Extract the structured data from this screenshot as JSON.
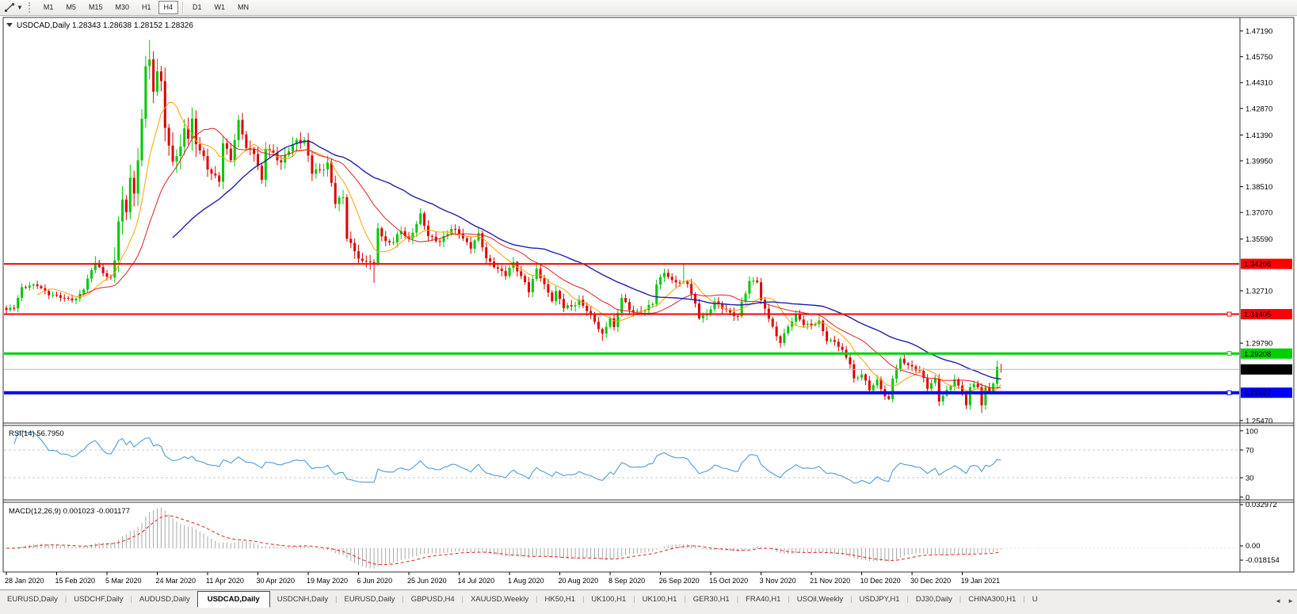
{
  "toolbar": {
    "timeframes": [
      "M1",
      "M5",
      "M15",
      "M30",
      "H1",
      "H4",
      "D1",
      "W1",
      "MN"
    ],
    "active_timeframe": "H4"
  },
  "chart": {
    "title_text": "USDCAD,Daily  1.28343 1.28638 1.28152 1.28326",
    "symbol_period": "USDCAD,Daily"
  },
  "colors": {
    "bull": "#00c800",
    "bear": "#e00000",
    "ma_fast": "#ffa000",
    "ma_mid": "#e01f1f",
    "ma_slow": "#1f1fae",
    "rsi_line": "#4f9bd8",
    "rsi_dash": "#c9c9c9",
    "macd_hist": "#a8a8a8",
    "macd_signal": "#e01f1f",
    "level_red": "#ff0000",
    "level_green": "#00cf00",
    "level_blue": "#0000ff",
    "current_price_line": "#b8b8b8",
    "badge_black": "#000000",
    "title_text": "#2929c8"
  },
  "chart_data": {
    "type": "candlestick+indicators",
    "symbol": "USDCAD",
    "period": "Daily",
    "ohlc_display": {
      "open": 1.28343,
      "high": 1.28638,
      "low": 1.28152,
      "close": 1.28326
    },
    "bars_total": 258,
    "x_labels": [
      "28 Jan 2020",
      "15 Feb 2020",
      "5 Mar 2020",
      "24 Mar 2020",
      "11 Apr 2020",
      "30 Apr 2020",
      "19 May 2020",
      "6 Jun 2020",
      "25 Jun 2020",
      "14 Jul 2020",
      "1 Aug 2020",
      "20 Aug 2020",
      "8 Sep 2020",
      "26 Sep 2020",
      "15 Oct 2020",
      "3 Nov 2020",
      "21 Nov 2020",
      "10 Dec 2020",
      "30 Dec 2020",
      "19 Jan 2021"
    ],
    "bars_per_label": 13,
    "y_axis_labels": [
      "1.47190",
      "1.45750",
      "1.44310",
      "1.42870",
      "1.41390",
      "1.39950",
      "1.38510",
      "1.37070",
      "1.35590",
      "1.32710",
      "1.29790",
      "1.25470"
    ],
    "levels": [
      {
        "price": 1.34206,
        "label": "1.34206",
        "color_key": "level_red",
        "width": 2,
        "handle": false,
        "label_fg": "#ffffff"
      },
      {
        "price": 1.31405,
        "label": "1.31405",
        "color_key": "level_red",
        "width": 2,
        "handle": true,
        "label_fg": "#ffffff"
      },
      {
        "price": 1.29208,
        "label": "1.29208",
        "color_key": "level_green",
        "width": 3,
        "handle": true,
        "label_fg": "#000000"
      },
      {
        "price": 1.27027,
        "label": "1.27027",
        "color_key": "level_blue",
        "width": 4,
        "handle": true,
        "label_fg": "#ffffff"
      }
    ],
    "current_price": {
      "price": 1.28326,
      "label": "1.28326"
    },
    "close_path_anchors": [
      [
        0,
        1.316
      ],
      [
        2,
        1.318
      ],
      [
        4,
        1.329
      ],
      [
        8,
        1.33
      ],
      [
        11,
        1.3255
      ],
      [
        15,
        1.3225
      ],
      [
        18,
        1.3228
      ],
      [
        20,
        1.328
      ],
      [
        23,
        1.3432
      ],
      [
        25,
        1.3372
      ],
      [
        27,
        1.334
      ],
      [
        28,
        1.3425
      ],
      [
        29,
        1.366
      ],
      [
        30,
        1.376
      ],
      [
        31,
        1.372
      ],
      [
        32,
        1.393
      ],
      [
        33,
        1.3805
      ],
      [
        34,
        1.3998
      ],
      [
        35,
        1.423
      ],
      [
        36,
        1.449
      ],
      [
        37,
        1.456
      ],
      [
        38,
        1.44
      ],
      [
        39,
        1.449
      ],
      [
        40,
        1.4458
      ],
      [
        41,
        1.419
      ],
      [
        42,
        1.405
      ],
      [
        43,
        1.3985
      ],
      [
        45,
        1.406
      ],
      [
        46,
        1.42
      ],
      [
        47,
        1.414
      ],
      [
        48,
        1.4215
      ],
      [
        49,
        1.409
      ],
      [
        51,
        1.4005
      ],
      [
        52,
        1.3955
      ],
      [
        55,
        1.389
      ],
      [
        56,
        1.409
      ],
      [
        58,
        1.4
      ],
      [
        60,
        1.422
      ],
      [
        61,
        1.416
      ],
      [
        62,
        1.407
      ],
      [
        64,
        1.4035
      ],
      [
        66,
        1.388
      ],
      [
        67,
        1.4075
      ],
      [
        69,
        1.404
      ],
      [
        71,
        1.3975
      ],
      [
        73,
        1.4055
      ],
      [
        75,
        1.4115
      ],
      [
        77,
        1.4105
      ],
      [
        79,
        1.3925
      ],
      [
        81,
        1.3945
      ],
      [
        83,
        1.3985
      ],
      [
        85,
        1.376
      ],
      [
        87,
        1.3785
      ],
      [
        88,
        1.357
      ],
      [
        90,
        1.35
      ],
      [
        92,
        1.3425
      ],
      [
        94,
        1.343
      ],
      [
        95,
        1.3415
      ],
      [
        96,
        1.3625
      ],
      [
        98,
        1.3545
      ],
      [
        100,
        1.354
      ],
      [
        102,
        1.3605
      ],
      [
        104,
        1.356
      ],
      [
        107,
        1.369
      ],
      [
        109,
        1.3575
      ],
      [
        112,
        1.355
      ],
      [
        115,
        1.361
      ],
      [
        117,
        1.3595
      ],
      [
        120,
        1.3515
      ],
      [
        122,
        1.358
      ],
      [
        124,
        1.345
      ],
      [
        126,
        1.3415
      ],
      [
        129,
        1.3355
      ],
      [
        131,
        1.3425
      ],
      [
        134,
        1.332
      ],
      [
        135,
        1.327
      ],
      [
        137,
        1.3385
      ],
      [
        139,
        1.3305
      ],
      [
        141,
        1.3225
      ],
      [
        142,
        1.3265
      ],
      [
        144,
        1.3175
      ],
      [
        146,
        1.3185
      ],
      [
        148,
        1.322
      ],
      [
        150,
        1.316
      ],
      [
        152,
        1.3095
      ],
      [
        154,
        1.303
      ],
      [
        156,
        1.3125
      ],
      [
        157,
        1.306
      ],
      [
        159,
        1.323
      ],
      [
        161,
        1.317
      ],
      [
        163,
        1.3155
      ],
      [
        165,
        1.316
      ],
      [
        167,
        1.32
      ],
      [
        168,
        1.331
      ],
      [
        170,
        1.338
      ],
      [
        172,
        1.332
      ],
      [
        174,
        1.3315
      ],
      [
        176,
        1.332
      ],
      [
        178,
        1.3195
      ],
      [
        179,
        1.312
      ],
      [
        181,
        1.3135
      ],
      [
        183,
        1.3215
      ],
      [
        185,
        1.318
      ],
      [
        187,
        1.314
      ],
      [
        189,
        1.3125
      ],
      [
        190,
        1.321
      ],
      [
        192,
        1.3325
      ],
      [
        194,
        1.332
      ],
      [
        195,
        1.321
      ],
      [
        197,
        1.3125
      ],
      [
        199,
        1.302
      ],
      [
        200,
        1.2985
      ],
      [
        202,
        1.3065
      ],
      [
        204,
        1.314
      ],
      [
        206,
        1.309
      ],
      [
        208,
        1.3075
      ],
      [
        210,
        1.3095
      ],
      [
        212,
        1.3
      ],
      [
        214,
        1.299
      ],
      [
        216,
        1.293
      ],
      [
        218,
        1.2865
      ],
      [
        219,
        1.278
      ],
      [
        221,
        1.281
      ],
      [
        223,
        1.2715
      ],
      [
        225,
        1.277
      ],
      [
        227,
        1.269
      ],
      [
        228,
        1.2665
      ],
      [
        229,
        1.2785
      ],
      [
        231,
        1.288
      ],
      [
        233,
        1.286
      ],
      [
        236,
        1.2825
      ],
      [
        238,
        1.2725
      ],
      [
        240,
        1.278
      ],
      [
        241,
        1.2665
      ],
      [
        243,
        1.2715
      ],
      [
        245,
        1.277
      ],
      [
        247,
        1.27
      ],
      [
        248,
        1.2635
      ],
      [
        249,
        1.2735
      ],
      [
        250,
        1.276
      ],
      [
        251,
        1.2727
      ],
      [
        252,
        1.2625
      ],
      [
        253,
        1.2735
      ],
      [
        254,
        1.2705
      ],
      [
        255,
        1.2755
      ],
      [
        256,
        1.2858
      ],
      [
        257,
        1.28326
      ]
    ],
    "special_points": [
      {
        "i": 23,
        "high": 1.3464
      },
      {
        "i": 37,
        "high": 1.4669
      },
      {
        "i": 95,
        "low": 1.3315
      },
      {
        "i": 154,
        "low": 1.2992
      },
      {
        "i": 175,
        "high": 1.342
      },
      {
        "i": 252,
        "low": 1.259
      },
      {
        "i": 256,
        "high": 1.2881
      }
    ],
    "last_bar": {
      "open": 1.28343,
      "high": 1.28638,
      "low": 1.28152,
      "close": 1.28326
    },
    "moving_averages": [
      {
        "name": "fast",
        "period": 9,
        "color_key": "ma_fast"
      },
      {
        "name": "mid",
        "period": 20,
        "color_key": "ma_mid"
      },
      {
        "name": "slow",
        "period": 44,
        "color_key": "ma_slow"
      }
    ],
    "indicators": {
      "rsi": {
        "label": "RSI(14) 56.7950",
        "period": 14,
        "current": 56.795,
        "axis_labels": [
          "100",
          "70",
          "30",
          "0"
        ],
        "dash_levels": [
          70,
          30
        ]
      },
      "macd": {
        "label": "MACD(12,26,9) 0.001023 -0.001177",
        "params": [
          12,
          26,
          9
        ],
        "current_macd": 0.001023,
        "current_signal": -0.001177,
        "axis_max_label": "0.032972",
        "axis_zero_label": "0.00",
        "axis_min_label": "-0.018154"
      }
    }
  },
  "bottom_tabs": {
    "items": [
      "EURUSD,Daily",
      "USDCHF,Daily",
      "AUDUSD,Daily",
      "USDCAD,Daily",
      "USDCNH,Daily",
      "EURUSD,Daily",
      "GBPUSD,H4",
      "XAUUSD,Weekly",
      "HK50,H1",
      "UK100,H1",
      "UK100,H1",
      "GER30,H1",
      "FRA40,H1",
      "USOil,Weekly",
      "USDJPY,H1",
      "DJ30,Daily",
      "CHINA300,H1"
    ],
    "active_index": 3,
    "partial_tab": "U",
    "scroll_left": "◄",
    "scroll_right": "►"
  }
}
